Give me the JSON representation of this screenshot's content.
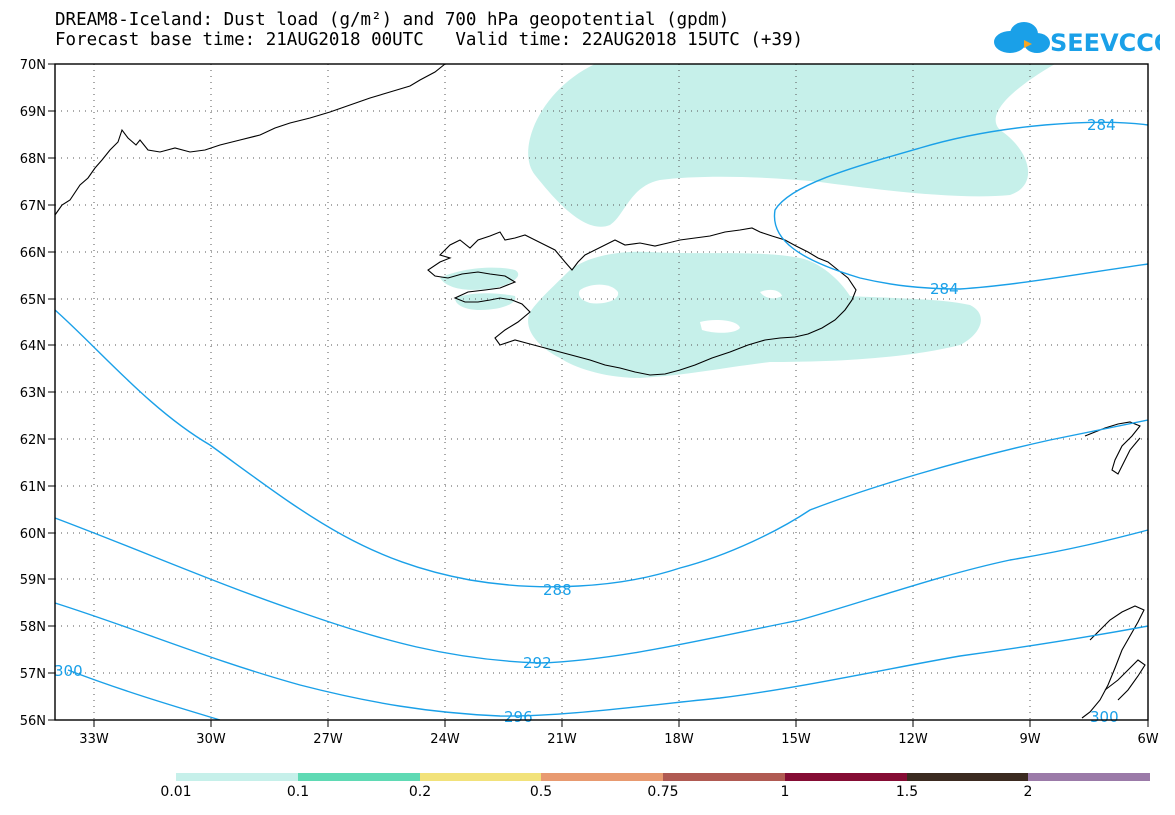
{
  "header": {
    "title": "DREAM8-Iceland: Dust load (g/m²) and 700 hPa geopotential (gpdm)",
    "subtitle": "Forecast base time: 21AUG2018 00UTC   Valid time: 22AUG2018 15UTC (+39)"
  },
  "logo": {
    "text": "SEEVCCC",
    "icon": "cloud-icon",
    "color": "#1aa0e8"
  },
  "map": {
    "lat_labels": [
      "70N",
      "69N",
      "68N",
      "67N",
      "66N",
      "65N",
      "64N",
      "63N",
      "62N",
      "61N",
      "60N",
      "59N",
      "58N",
      "57N",
      "56N"
    ],
    "lon_labels": [
      "33W",
      "30W",
      "27W",
      "24W",
      "21W",
      "18W",
      "15W",
      "12W",
      "9W",
      "6W"
    ],
    "contour_labels": [
      "284",
      "284",
      "288",
      "292",
      "296",
      "300",
      "300"
    ],
    "contour_color": "#1aa0e8",
    "dust_color": "#c6f0ea"
  },
  "colorbar": {
    "labels": [
      "0.01",
      "0.1",
      "0.2",
      "0.5",
      "0.75",
      "1",
      "1.5",
      "2"
    ],
    "colors": [
      "#c6f0ea",
      "#5fdab4",
      "#f2e27a",
      "#e89a70",
      "#b05a52",
      "#850c34",
      "#3b2a20",
      "#9b7aa8"
    ]
  }
}
